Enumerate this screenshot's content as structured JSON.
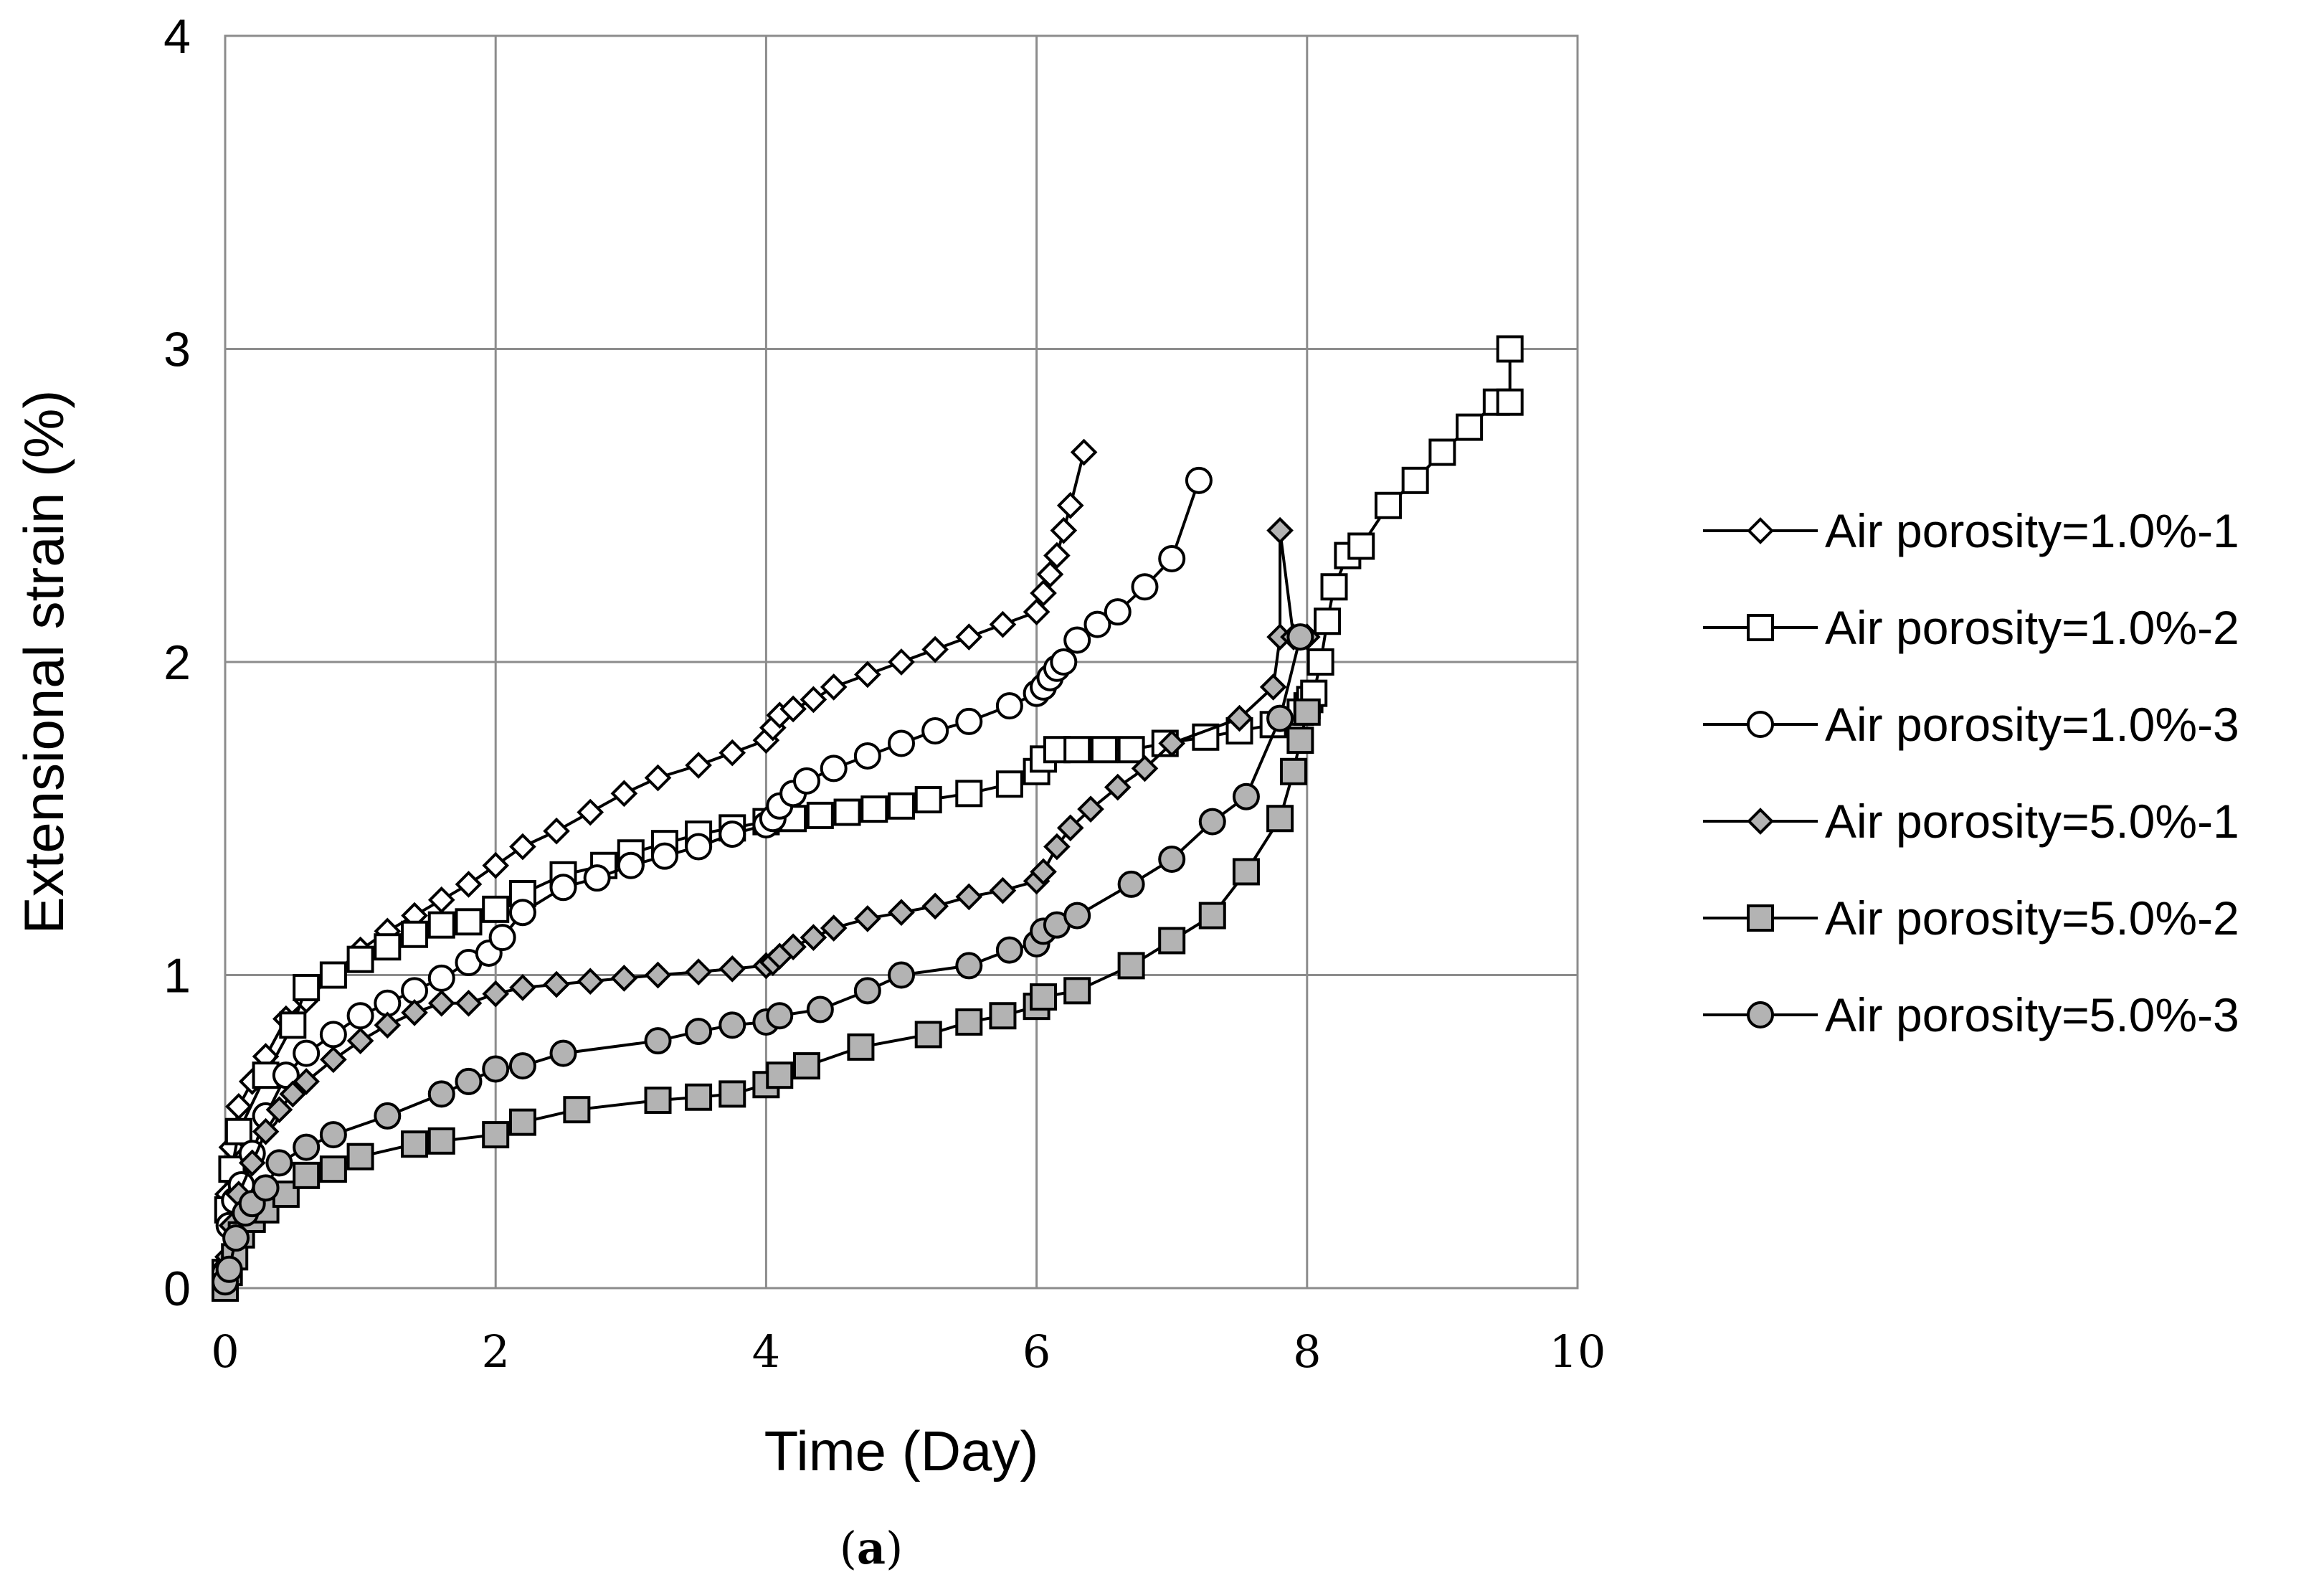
{
  "chart_data": {
    "type": "line",
    "title": "",
    "xlabel": "Time (Day)",
    "ylabel": "Extensional strain (%)",
    "xlim": [
      0,
      10
    ],
    "ylim": [
      0,
      4
    ],
    "xticks": [
      "0",
      "2",
      "4",
      "6",
      "8",
      "10"
    ],
    "yticks": [
      "0",
      "1",
      "2",
      "3",
      "4"
    ],
    "grid": true,
    "legend_position": "right",
    "caption_open": "(",
    "caption_letter": "a",
    "caption_close": ")",
    "series": [
      {
        "name": "Air porosity=1.0%-1",
        "marker": "diamond",
        "fill": "#ffffff",
        "x": [
          0,
          0.02,
          0.05,
          0.1,
          0.2,
          0.3,
          0.45,
          0.6,
          0.8,
          1.0,
          1.2,
          1.4,
          1.6,
          1.8,
          2.0,
          2.2,
          2.45,
          2.7,
          2.95,
          3.2,
          3.5,
          3.75,
          4.0,
          4.05,
          4.1,
          4.2,
          4.35,
          4.5,
          4.75,
          5.0,
          5.25,
          5.5,
          5.75,
          6.0,
          6.05,
          6.1,
          6.15,
          6.2,
          6.25,
          6.35
        ],
        "y": [
          0.05,
          0.3,
          0.45,
          0.58,
          0.66,
          0.74,
          0.86,
          0.92,
          1.0,
          1.08,
          1.14,
          1.19,
          1.24,
          1.29,
          1.35,
          1.41,
          1.46,
          1.52,
          1.58,
          1.63,
          1.67,
          1.71,
          1.75,
          1.79,
          1.83,
          1.85,
          1.88,
          1.92,
          1.96,
          2.0,
          2.04,
          2.08,
          2.12,
          2.16,
          2.22,
          2.28,
          2.34,
          2.42,
          2.5,
          2.67
        ]
      },
      {
        "name": "Air porosity=1.0%-2",
        "marker": "square",
        "fill": "#ffffff",
        "x": [
          0,
          0.02,
          0.05,
          0.1,
          0.3,
          0.5,
          0.6,
          0.8,
          1.0,
          1.2,
          1.4,
          1.6,
          1.8,
          2.0,
          2.2,
          2.5,
          2.8,
          3.0,
          3.25,
          3.5,
          3.75,
          4.0,
          4.2,
          4.4,
          4.6,
          4.8,
          5.0,
          5.2,
          5.5,
          5.8,
          6.0,
          6.05,
          6.15,
          6.3,
          6.5,
          6.7,
          6.95,
          7.25,
          7.5,
          7.75,
          7.95,
          8.0,
          8.02,
          8.05,
          8.1,
          8.15,
          8.2,
          8.3,
          8.4,
          8.6,
          8.8,
          9.0,
          9.2,
          9.4,
          9.5,
          9.5
        ],
        "y": [
          0.05,
          0.25,
          0.38,
          0.5,
          0.68,
          0.84,
          0.96,
          1.0,
          1.05,
          1.09,
          1.13,
          1.16,
          1.17,
          1.21,
          1.26,
          1.32,
          1.35,
          1.39,
          1.42,
          1.45,
          1.47,
          1.49,
          1.5,
          1.51,
          1.52,
          1.53,
          1.54,
          1.56,
          1.58,
          1.61,
          1.65,
          1.69,
          1.72,
          1.72,
          1.72,
          1.72,
          1.74,
          1.76,
          1.78,
          1.8,
          1.84,
          1.86,
          1.88,
          1.9,
          2.0,
          2.13,
          2.24,
          2.34,
          2.37,
          2.5,
          2.58,
          2.67,
          2.75,
          2.83,
          2.83,
          3.0
        ]
      },
      {
        "name": "Air porosity=1.0%-3",
        "marker": "circle",
        "fill": "#ffffff",
        "x": [
          0,
          0.03,
          0.07,
          0.12,
          0.2,
          0.3,
          0.45,
          0.6,
          0.8,
          1.0,
          1.2,
          1.4,
          1.6,
          1.8,
          1.95,
          2.05,
          2.2,
          2.5,
          2.75,
          3.0,
          3.25,
          3.5,
          3.75,
          4.0,
          4.05,
          4.1,
          4.2,
          4.3,
          4.5,
          4.75,
          5.0,
          5.25,
          5.5,
          5.8,
          6.0,
          6.05,
          6.1,
          6.15,
          6.2,
          6.3,
          6.45,
          6.6,
          6.8,
          7.0,
          7.2
        ],
        "y": [
          0.05,
          0.2,
          0.28,
          0.33,
          0.43,
          0.55,
          0.68,
          0.75,
          0.81,
          0.87,
          0.91,
          0.95,
          0.99,
          1.04,
          1.07,
          1.12,
          1.2,
          1.28,
          1.31,
          1.35,
          1.38,
          1.41,
          1.45,
          1.48,
          1.5,
          1.54,
          1.58,
          1.62,
          1.66,
          1.7,
          1.74,
          1.78,
          1.81,
          1.86,
          1.9,
          1.92,
          1.95,
          1.98,
          2.0,
          2.07,
          2.12,
          2.16,
          2.24,
          2.33,
          2.58
        ]
      },
      {
        "name": "Air porosity=5.0%-1",
        "marker": "diamond",
        "fill": "#b3b3b3",
        "x": [
          0,
          0.02,
          0.05,
          0.1,
          0.2,
          0.3,
          0.4,
          0.5,
          0.6,
          0.8,
          1.0,
          1.2,
          1.4,
          1.6,
          1.8,
          2.0,
          2.2,
          2.45,
          2.7,
          2.95,
          3.2,
          3.5,
          3.75,
          4.0,
          4.05,
          4.1,
          4.2,
          4.35,
          4.5,
          4.75,
          5.0,
          5.25,
          5.5,
          5.75,
          6.0,
          6.05,
          6.15,
          6.25,
          6.4,
          6.6,
          6.8,
          7.0,
          7.5,
          7.75,
          7.8,
          7.8,
          7.9,
          8.0
        ],
        "y": [
          0.03,
          0.1,
          0.2,
          0.3,
          0.4,
          0.5,
          0.57,
          0.62,
          0.66,
          0.73,
          0.79,
          0.84,
          0.88,
          0.91,
          0.91,
          0.94,
          0.96,
          0.97,
          0.98,
          0.99,
          1.0,
          1.01,
          1.02,
          1.03,
          1.04,
          1.06,
          1.09,
          1.12,
          1.15,
          1.18,
          1.2,
          1.22,
          1.25,
          1.27,
          1.3,
          1.33,
          1.41,
          1.47,
          1.53,
          1.6,
          1.66,
          1.74,
          1.82,
          1.92,
          2.08,
          2.42,
          2.08,
          2.08
        ]
      },
      {
        "name": "Air porosity=5.0%-2",
        "marker": "square",
        "fill": "#b3b3b3",
        "x": [
          0,
          0.03,
          0.07,
          0.12,
          0.2,
          0.3,
          0.45,
          0.6,
          0.8,
          1.0,
          1.4,
          1.6,
          2.0,
          2.2,
          2.6,
          3.2,
          3.5,
          3.75,
          4.0,
          4.1,
          4.3,
          4.7,
          5.2,
          5.5,
          5.75,
          6.0,
          6.05,
          6.3,
          6.7,
          7.0,
          7.3,
          7.55,
          7.8,
          7.9,
          7.95,
          8.0
        ],
        "y": [
          0.0,
          0.05,
          0.1,
          0.17,
          0.22,
          0.25,
          0.3,
          0.36,
          0.38,
          0.42,
          0.46,
          0.47,
          0.49,
          0.53,
          0.57,
          0.6,
          0.61,
          0.62,
          0.65,
          0.68,
          0.71,
          0.77,
          0.81,
          0.85,
          0.87,
          0.9,
          0.93,
          0.95,
          1.03,
          1.11,
          1.19,
          1.33,
          1.5,
          1.65,
          1.75,
          1.84
        ]
      },
      {
        "name": "Air porosity=5.0%-3",
        "marker": "circle",
        "fill": "#b3b3b3",
        "x": [
          0,
          0.03,
          0.08,
          0.15,
          0.2,
          0.3,
          0.4,
          0.6,
          0.8,
          1.2,
          1.6,
          1.8,
          2.0,
          2.2,
          2.5,
          3.2,
          3.5,
          3.75,
          4.0,
          4.1,
          4.4,
          4.75,
          5.0,
          5.5,
          5.8,
          6.0,
          6.05,
          6.15,
          6.3,
          6.7,
          7.0,
          7.3,
          7.55,
          7.8,
          7.95
        ],
        "y": [
          0.02,
          0.06,
          0.16,
          0.24,
          0.27,
          0.32,
          0.4,
          0.45,
          0.49,
          0.55,
          0.62,
          0.66,
          0.7,
          0.71,
          0.75,
          0.79,
          0.82,
          0.84,
          0.85,
          0.87,
          0.89,
          0.95,
          1.0,
          1.03,
          1.08,
          1.1,
          1.14,
          1.16,
          1.19,
          1.29,
          1.37,
          1.49,
          1.57,
          1.82,
          2.08
        ]
      }
    ]
  }
}
